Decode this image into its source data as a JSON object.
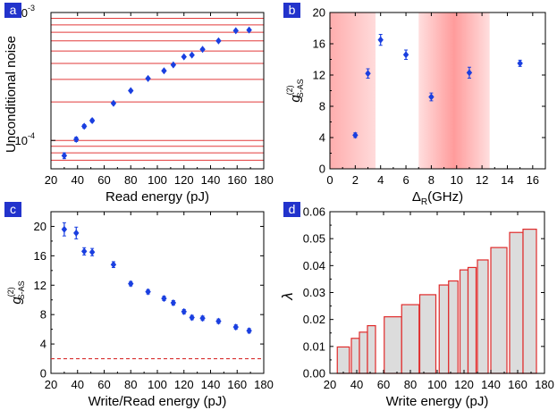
{
  "figure": {
    "background": "#ffffff"
  },
  "colors": {
    "marker": "#1a3fe0",
    "hline": "#e23a3a",
    "dash": "#d83030",
    "bar_fill": "#dcdcdc",
    "bar_edge": "#e02a2a",
    "band": "#ff4a4a",
    "badge_bg": "#2233cc",
    "badge_fg": "#ffffff",
    "axis": "#000000"
  },
  "chart_data": [
    {
      "id": "a",
      "panel_label": "a",
      "type": "scatter",
      "yscale": "log",
      "xlabel": "Read energy (pJ)",
      "ylabel": "Unconditional noise",
      "xlim": [
        20,
        180
      ],
      "ylim": [
        6e-05,
        0.001
      ],
      "xticks": [
        20,
        40,
        60,
        80,
        100,
        120,
        140,
        160,
        180
      ],
      "ytick_labels": [
        {
          "value": 0.0001,
          "base": "10",
          "exp": "-4"
        },
        {
          "value": 0.001,
          "base": "10",
          "exp": "-3"
        }
      ],
      "hlines": [
        6e-05,
        7e-05,
        8e-05,
        9e-05,
        0.0001,
        0.0002,
        0.0003,
        0.0004,
        0.0005,
        0.0006,
        0.0007,
        0.0008,
        0.0009,
        0.001
      ],
      "x": [
        30,
        39,
        45,
        51,
        67,
        80,
        93,
        105,
        112,
        120,
        126,
        134,
        146,
        159,
        169
      ],
      "y": [
        7.6e-05,
        0.000102,
        0.000129,
        0.000143,
        0.000195,
        0.000245,
        0.000305,
        0.00035,
        0.00039,
        0.00045,
        0.000465,
        0.000515,
        0.0006,
        0.00072,
        0.00073
      ],
      "yerr": [
        4e-06,
        4e-06,
        4e-06,
        4e-06,
        4e-06,
        4e-06,
        4e-06,
        4e-06,
        4e-06,
        4e-06,
        4e-06,
        4e-06,
        4e-06,
        4e-06,
        4e-06
      ]
    },
    {
      "id": "b",
      "panel_label": "b",
      "type": "scatter",
      "xlabel": {
        "main": "Δ",
        "sub": "R",
        "rest": "(GHz)"
      },
      "ylabel": {
        "main": "g",
        "sup": "(2)",
        "sub": "S-AS"
      },
      "xlim": [
        0,
        17
      ],
      "ylim": [
        0,
        20
      ],
      "xticks": [
        0,
        2,
        4,
        6,
        8,
        10,
        12,
        14,
        16
      ],
      "yticks": [
        0,
        4,
        8,
        12,
        16,
        20
      ],
      "bands": [
        {
          "from": 0,
          "to": 3.6
        },
        {
          "from": 7.0,
          "to": 12.6
        }
      ],
      "x": [
        2,
        3,
        4,
        6,
        8,
        11,
        15
      ],
      "y": [
        4.3,
        12.2,
        16.5,
        14.6,
        9.2,
        12.3,
        13.5
      ],
      "yerr": [
        0.3,
        0.6,
        0.7,
        0.6,
        0.5,
        0.7,
        0.4
      ]
    },
    {
      "id": "c",
      "panel_label": "c",
      "type": "scatter",
      "xlabel": "Write/Read energy (pJ)",
      "ylabel": {
        "main": "g",
        "sup": "(2)",
        "sub": "S-AS"
      },
      "xlim": [
        20,
        180
      ],
      "ylim": [
        0,
        22
      ],
      "xticks": [
        20,
        40,
        60,
        80,
        100,
        120,
        140,
        160,
        180
      ],
      "yticks": [
        0,
        4,
        8,
        12,
        16,
        20
      ],
      "reference_line": 2,
      "x": [
        30,
        39,
        45,
        51,
        67,
        80,
        93,
        105,
        112,
        120,
        126,
        134,
        146,
        159,
        169
      ],
      "y": [
        19.6,
        19.1,
        16.6,
        16.5,
        14.8,
        12.2,
        11.1,
        10.2,
        9.6,
        8.4,
        7.6,
        7.5,
        7.1,
        6.3,
        5.8
      ],
      "yerr": [
        0.9,
        0.8,
        0.5,
        0.5,
        0.4,
        0.3,
        0.3,
        0.3,
        0.3,
        0.3,
        0.3,
        0.3,
        0.3,
        0.3,
        0.3
      ]
    },
    {
      "id": "d",
      "panel_label": "d",
      "type": "bar",
      "xlabel": "Write energy (pJ)",
      "ylabel": "λ",
      "xlim": [
        20,
        180
      ],
      "ylim": [
        0,
        0.06
      ],
      "xticks": [
        20,
        40,
        60,
        80,
        100,
        120,
        140,
        160,
        180
      ],
      "yticks": [
        0,
        0.01,
        0.02,
        0.03,
        0.04,
        0.05,
        0.06
      ],
      "ytick_labels": [
        "0.00",
        "0.01",
        "0.02",
        "0.03",
        "0.04",
        "0.05",
        "0.06"
      ],
      "x": [
        30,
        39,
        45,
        51,
        67,
        80,
        93,
        105,
        112,
        120,
        126,
        134,
        146,
        159,
        169
      ],
      "values": [
        0.0098,
        0.013,
        0.0153,
        0.0177,
        0.021,
        0.0255,
        0.0292,
        0.0328,
        0.0343,
        0.0384,
        0.0393,
        0.0421,
        0.0467,
        0.0523,
        0.0535
      ]
    }
  ]
}
